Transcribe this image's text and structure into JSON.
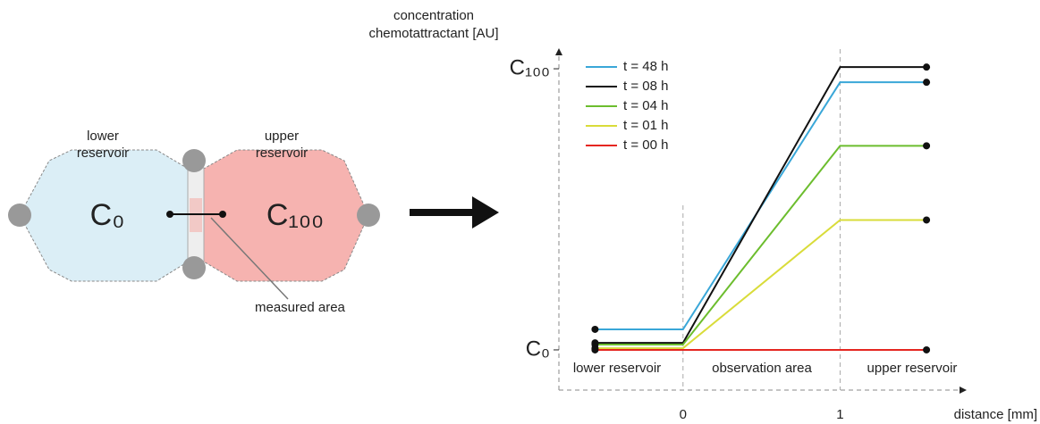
{
  "diagram": {
    "lower_reservoir": [
      "lower",
      "reservoir"
    ],
    "upper_reservoir": [
      "upper",
      "reservoir"
    ],
    "lower_concentration": "C₀",
    "upper_concentration": "C₁₀₀",
    "measured_area": "measured area"
  },
  "chart_data": {
    "type": "line",
    "ylabel": [
      "concentration",
      "chemotattractant [AU]"
    ],
    "xlabel": "distance [mm]",
    "annotations": [
      "lower reservoir",
      "observation area",
      "upper reservoir"
    ],
    "x": [
      -0.56,
      0,
      1,
      1.55
    ],
    "series": [
      {
        "name": "t = 48 h",
        "color": "#3aa7d8",
        "values": [
          7.3,
          7.3,
          95.2,
          95.2
        ]
      },
      {
        "name": "t = 08 h",
        "color": "#111111",
        "values": [
          2.5,
          2.5,
          100.6,
          100.6
        ]
      },
      {
        "name": "t = 04 h",
        "color": "#6cbd2e",
        "values": [
          1.9,
          1.9,
          72.6,
          72.6
        ]
      },
      {
        "name": "t = 01 h",
        "color": "#d9dc3a",
        "values": [
          0.6,
          0.6,
          46.2,
          46.2
        ]
      },
      {
        "name": "t = 00 h",
        "color": "#e52620",
        "values": [
          0,
          0,
          0,
          0
        ]
      }
    ],
    "xlim": [
      -0.79,
      1.8
    ],
    "ylim": [
      -14.3,
      107
    ],
    "xticks": [
      0,
      1
    ],
    "yticks": [
      {
        "value": 0,
        "label": "C₀"
      },
      {
        "value": 100,
        "label": "C₁₀₀"
      }
    ],
    "grid": "x",
    "legend": "upper left"
  }
}
